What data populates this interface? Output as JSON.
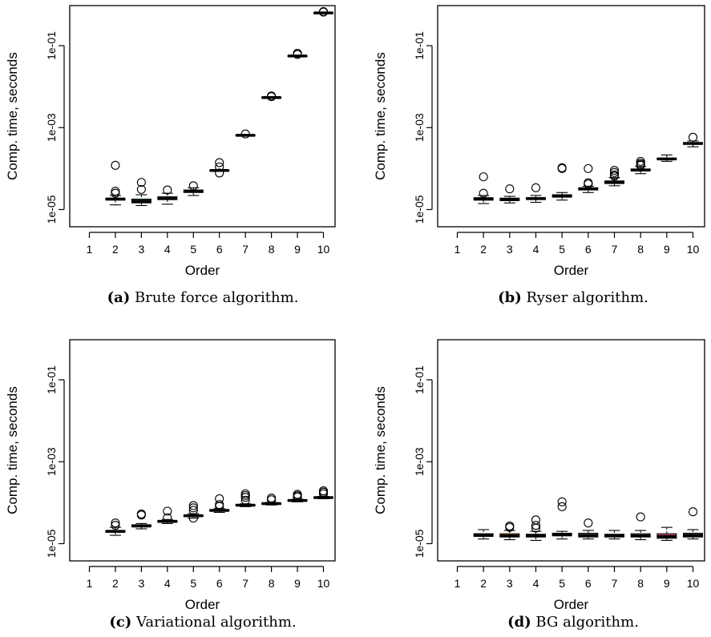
{
  "chart_data": [
    {
      "type": "boxplot",
      "caption_tag": "(a)",
      "caption_text": "Brute force algorithm.",
      "xlabel": "Order",
      "ylabel": "Comp. time, seconds",
      "y_scale": "log10",
      "ylim": [
        1e-05,
        1
      ],
      "yticks": [
        "1e-05",
        "1e-03",
        "1e-01"
      ],
      "categories": [
        "1",
        "2",
        "3",
        "4",
        "5",
        "6",
        "7",
        "8",
        "9",
        "10"
      ],
      "boxes": [
        null,
        {
          "lo": 1.3e-05,
          "q1": 1.7e-05,
          "med": 1.8e-05,
          "q3": 1.9e-05,
          "hi": 2.2e-05,
          "outliers": [
            0.00012,
            2.8e-05,
            2.5e-05
          ],
          "fill": "#7f7fff"
        },
        {
          "lo": 1.25e-05,
          "q1": 1.45e-05,
          "med": 1.6e-05,
          "q3": 1.8e-05,
          "hi": 2.3e-05,
          "outliers": [
            4.6e-05,
            3.1e-05
          ],
          "fill": "#2e8b57"
        },
        {
          "lo": 1.35e-05,
          "q1": 1.75e-05,
          "med": 1.85e-05,
          "q3": 2.05e-05,
          "hi": 2.5e-05,
          "outliers": [
            3e-05
          ],
          "fill": "#3cb371"
        },
        {
          "lo": 2.2e-05,
          "q1": 2.6e-05,
          "med": 2.8e-05,
          "q3": 3e-05,
          "hi": 3.4e-05,
          "outliers": [
            3.8e-05
          ],
          "fill": "#808080"
        },
        {
          "lo": 8.6e-05,
          "q1": 8.9e-05,
          "med": 9e-05,
          "q3": 9.1e-05,
          "hi": 9.4e-05,
          "outliers": [
            0.00014,
            0.00011,
            7.8e-05
          ],
          "fill": "#808080"
        },
        {
          "lo": 0.00062,
          "q1": 0.00064,
          "med": 0.00065,
          "q3": 0.00066,
          "hi": 0.00068,
          "outliers": [
            0.0007
          ],
          "fill": "#808080"
        },
        {
          "lo": 0.0052,
          "q1": 0.0053,
          "med": 0.0054,
          "q3": 0.0055,
          "hi": 0.0056,
          "outliers": [
            0.0059,
            0.0057
          ],
          "fill": "#808080"
        },
        {
          "lo": 0.054,
          "q1": 0.055,
          "med": 0.056,
          "q3": 0.057,
          "hi": 0.058,
          "outliers": [
            0.065,
            0.061
          ],
          "fill": "#808080"
        },
        {
          "lo": 0.61,
          "q1": 0.62,
          "med": 0.63,
          "q3": 0.64,
          "hi": 0.65,
          "outliers": [
            0.68,
            0.66
          ],
          "fill": "#808080"
        }
      ]
    },
    {
      "type": "boxplot",
      "caption_tag": "(b)",
      "caption_text": "Ryser algorithm.",
      "xlabel": "Order",
      "ylabel": "Comp. time, seconds",
      "y_scale": "log10",
      "ylim": [
        1e-05,
        1
      ],
      "yticks": [
        "1e-05",
        "1e-03",
        "1e-01"
      ],
      "categories": [
        "1",
        "2",
        "3",
        "4",
        "5",
        "6",
        "7",
        "8",
        "9",
        "10"
      ],
      "boxes": [
        null,
        {
          "lo": 1.4e-05,
          "q1": 1.7e-05,
          "med": 1.8e-05,
          "q3": 1.95e-05,
          "hi": 2.2e-05,
          "outliers": [
            6.3e-05,
            2.5e-05
          ],
          "fill": "#7f7fff"
        },
        {
          "lo": 1.45e-05,
          "q1": 1.65e-05,
          "med": 1.75e-05,
          "q3": 1.9e-05,
          "hi": 2.1e-05,
          "outliers": [
            3.2e-05
          ],
          "fill": "#ff8c00"
        },
        {
          "lo": 1.5e-05,
          "q1": 1.75e-05,
          "med": 1.85e-05,
          "q3": 1.95e-05,
          "hi": 2.2e-05,
          "outliers": [
            3.4e-05
          ],
          "fill": "#3cb371"
        },
        {
          "lo": 1.7e-05,
          "q1": 2e-05,
          "med": 2.15e-05,
          "q3": 2.3e-05,
          "hi": 2.6e-05,
          "outliers": [
            0.0001,
            0.000105
          ],
          "fill": "#808080"
        },
        {
          "lo": 2.6e-05,
          "q1": 3e-05,
          "med": 3.2e-05,
          "q3": 3.4e-05,
          "hi": 3.7e-05,
          "outliers": [
            0.0001,
            4.5e-05,
            4.2e-05
          ],
          "fill": "#808080"
        },
        {
          "lo": 3.8e-05,
          "q1": 4.3e-05,
          "med": 4.6e-05,
          "q3": 5e-05,
          "hi": 6e-05,
          "outliers": [
            9e-05,
            8e-05,
            7e-05,
            6.5e-05
          ],
          "fill": "#808080"
        },
        {
          "lo": 7.5e-05,
          "q1": 8.8e-05,
          "med": 9.2e-05,
          "q3": 9.8e-05,
          "hi": 0.000112,
          "outliers": [
            0.00015,
            0.000135,
            0.000125,
            0.00012
          ],
          "fill": "#808080"
        },
        {
          "lo": 0.00015,
          "q1": 0.000165,
          "med": 0.000172,
          "q3": 0.00018,
          "hi": 0.000215,
          "outliers": [],
          "fill": "#ff8c00"
        },
        {
          "lo": 0.00034,
          "q1": 0.00039,
          "med": 0.00041,
          "q3": 0.00043,
          "hi": 0.00047,
          "outliers": [
            0.00058
          ],
          "fill": "#808080"
        }
      ]
    },
    {
      "type": "boxplot",
      "caption_tag": "(c)",
      "caption_text": "Variational algorithm.",
      "xlabel": "Order",
      "ylabel": "Comp. time, seconds",
      "y_scale": "log10",
      "ylim": [
        1e-05,
        1
      ],
      "yticks": [
        "1e-05",
        "1e-03",
        "1e-01"
      ],
      "categories": [
        "1",
        "2",
        "3",
        "4",
        "5",
        "6",
        "7",
        "8",
        "9",
        "10"
      ],
      "boxes": [
        null,
        {
          "lo": 1.6e-05,
          "q1": 1.9e-05,
          "med": 2e-05,
          "q3": 2.1e-05,
          "hi": 2.5e-05,
          "outliers": [
            3.2e-05,
            2.8e-05
          ],
          "fill": "#7f7fff"
        },
        {
          "lo": 2.3e-05,
          "q1": 2.6e-05,
          "med": 2.7e-05,
          "q3": 2.9e-05,
          "hi": 3.1e-05,
          "outliers": [
            5.3e-05,
            5e-05
          ],
          "fill": "#808080"
        },
        {
          "lo": 3.1e-05,
          "q1": 3.3e-05,
          "med": 3.5e-05,
          "q3": 3.7e-05,
          "hi": 3.9e-05,
          "outliers": [
            6.2e-05,
            4.3e-05
          ],
          "fill": "#808080"
        },
        {
          "lo": 4.2e-05,
          "q1": 4.6e-05,
          "med": 4.8e-05,
          "q3": 5e-05,
          "hi": 5.4e-05,
          "outliers": [
            8.5e-05,
            7.5e-05,
            6.5e-05,
            4.2e-05
          ],
          "fill": "#808080"
        },
        {
          "lo": 5.8e-05,
          "q1": 6.2e-05,
          "med": 6.5e-05,
          "q3": 6.8e-05,
          "hi": 7.2e-05,
          "outliers": [
            0.000125,
            9e-05,
            8.2e-05
          ],
          "fill": "#808080"
        },
        {
          "lo": 8e-05,
          "q1": 8.4e-05,
          "med": 8.7e-05,
          "q3": 9e-05,
          "hi": 9.4e-05,
          "outliers": [
            0.000165,
            0.00015,
            0.000135,
            0.000115
          ],
          "fill": "#808080"
        },
        {
          "lo": 8.8e-05,
          "q1": 9.2e-05,
          "med": 9.5e-05,
          "q3": 9.8e-05,
          "hi": 0.000102,
          "outliers": [
            0.00013,
            0.000118
          ],
          "fill": "#808080"
        },
        {
          "lo": 0.000105,
          "q1": 0.00011,
          "med": 0.000113,
          "q3": 0.000117,
          "hi": 0.000122,
          "outliers": [
            0.00016,
            0.000148,
            0.000138
          ],
          "fill": "#808080"
        },
        {
          "lo": 0.000125,
          "q1": 0.00013,
          "med": 0.000133,
          "q3": 0.000137,
          "hi": 0.000142,
          "outliers": [
            0.000195,
            0.00018,
            0.000165
          ],
          "fill": "#808080"
        }
      ]
    },
    {
      "type": "boxplot",
      "caption_tag": "(d)",
      "caption_text": "BG algorithm.",
      "xlabel": "Order",
      "ylabel": "Comp. time, seconds",
      "y_scale": "log10",
      "ylim": [
        1e-05,
        1
      ],
      "yticks": [
        "1e-05",
        "1e-03",
        "1e-01"
      ],
      "categories": [
        "1",
        "2",
        "3",
        "4",
        "5",
        "6",
        "7",
        "8",
        "9",
        "10"
      ],
      "boxes": [
        null,
        {
          "lo": 1.3e-05,
          "q1": 1.5e-05,
          "med": 1.6e-05,
          "q3": 1.75e-05,
          "hi": 2.2e-05,
          "outliers": [],
          "fill": "#7f7fff"
        },
        {
          "lo": 1.25e-05,
          "q1": 1.45e-05,
          "med": 1.55e-05,
          "q3": 1.75e-05,
          "hi": 2.1e-05,
          "outliers": [
            2.7e-05,
            2.5e-05
          ],
          "fill": "#ff8c00"
        },
        {
          "lo": 1.2e-05,
          "q1": 1.45e-05,
          "med": 1.55e-05,
          "q3": 1.7e-05,
          "hi": 2e-05,
          "outliers": [
            3.8e-05,
            2.8e-05,
            2.4e-05
          ],
          "fill": "#3cb371"
        },
        {
          "lo": 1.3e-05,
          "q1": 1.55e-05,
          "med": 1.65e-05,
          "q3": 1.8e-05,
          "hi": 2e-05,
          "outliers": [
            0.000105,
            8e-05
          ],
          "fill": "#808080"
        },
        {
          "lo": 1.3e-05,
          "q1": 1.45e-05,
          "med": 1.6e-05,
          "q3": 1.8e-05,
          "hi": 2.1e-05,
          "outliers": [
            3.2e-05
          ],
          "fill": "#c8a0c0"
        },
        {
          "lo": 1.3e-05,
          "q1": 1.45e-05,
          "med": 1.55e-05,
          "q3": 1.7e-05,
          "hi": 2.1e-05,
          "outliers": [],
          "fill": "#808080"
        },
        {
          "lo": 1.25e-05,
          "q1": 1.45e-05,
          "med": 1.55e-05,
          "q3": 1.75e-05,
          "hi": 2.1e-05,
          "outliers": [
            4.5e-05
          ],
          "fill": "#808080"
        },
        {
          "lo": 1.2e-05,
          "q1": 1.35e-05,
          "med": 1.5e-05,
          "q3": 1.75e-05,
          "hi": 2.5e-05,
          "outliers": [],
          "fill": "#e75480"
        },
        {
          "lo": 1.3e-05,
          "q1": 1.45e-05,
          "med": 1.6e-05,
          "q3": 1.8e-05,
          "hi": 2.2e-05,
          "outliers": [
            6e-05
          ],
          "fill": "#808080"
        }
      ]
    }
  ]
}
